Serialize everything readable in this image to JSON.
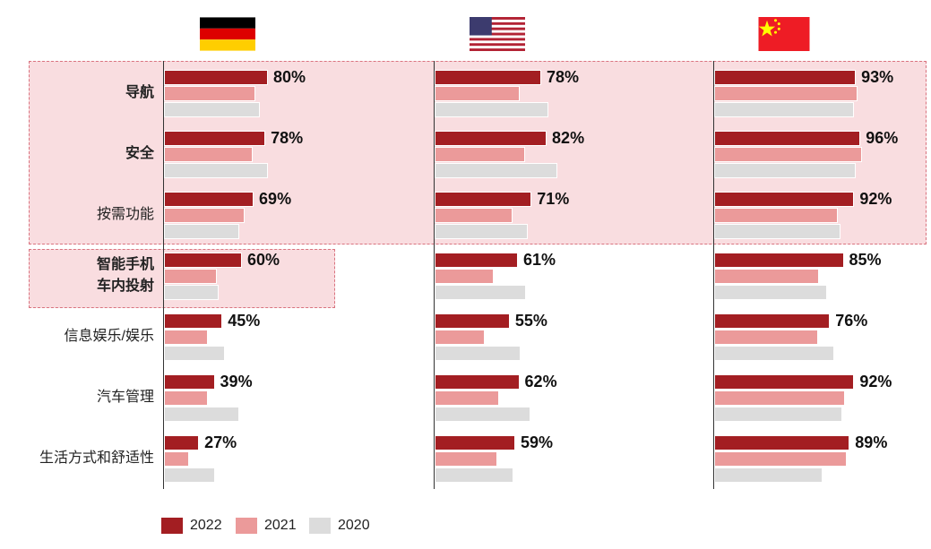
{
  "chart_data": {
    "type": "bar",
    "orientation": "horizontal",
    "categories": [
      "导航",
      "安全",
      "按需功能",
      "智能手机\n车内投射",
      "信息娱乐/娱乐",
      "汽车管理",
      "生活方式和舒适性"
    ],
    "highlighted_categories": [
      "导航",
      "安全",
      "按需功能",
      "智能手机\n车内投射"
    ],
    "bold_categories": [
      "导航",
      "安全",
      "智能手机\n车内投射"
    ],
    "legend": [
      "2022",
      "2021",
      "2020"
    ],
    "legend_position": "bottom-left",
    "colors": {
      "2022": "#a31e22",
      "2021": "#eb9a9a",
      "2020": "#dcdcdc"
    },
    "value_unit": "%",
    "panels": [
      {
        "country": "Germany",
        "flag": "de-flag",
        "series": {
          "2022": [
            80,
            78,
            69,
            60,
            45,
            39,
            27
          ],
          "2021": [
            70,
            68,
            62,
            41,
            34,
            34,
            19
          ],
          "2020": [
            74,
            80,
            58,
            42,
            47,
            58,
            39
          ]
        }
      },
      {
        "country": "USA",
        "flag": "us-flag",
        "series": {
          "2022": [
            78,
            82,
            71,
            61,
            55,
            62,
            59
          ],
          "2021": [
            62,
            66,
            57,
            43,
            37,
            47,
            46
          ],
          "2020": [
            83,
            90,
            68,
            67,
            63,
            70,
            58
          ]
        }
      },
      {
        "country": "China",
        "flag": "cn-flag",
        "series": {
          "2022": [
            93,
            96,
            92,
            85,
            76,
            92,
            89
          ],
          "2021": [
            94,
            97,
            81,
            69,
            68,
            86,
            87
          ],
          "2020": [
            92,
            93,
            83,
            74,
            79,
            84,
            71
          ]
        }
      }
    ]
  }
}
